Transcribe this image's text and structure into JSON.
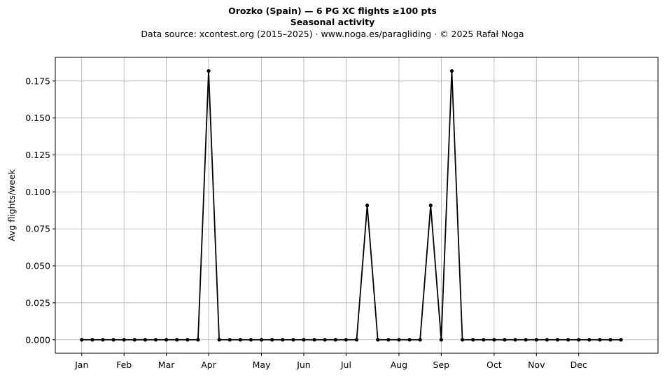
{
  "chart_data": {
    "type": "line",
    "title": "Orozko (Spain)  —  6 PG XC flights ≥100 pts",
    "subtitle": "Seasonal activity",
    "source_line": "Data source: xcontest.org (2015–2025)  ·  www.noga.es/paragliding  ·  © 2025 Rafał Noga",
    "xlabel": "",
    "ylabel": "Avg flights/week",
    "x_range": [
      -2.5,
      54.5
    ],
    "ylim": [
      -0.0091,
      0.191
    ],
    "y_ticks": [
      0.0,
      0.025,
      0.05,
      0.075,
      0.1,
      0.125,
      0.15,
      0.175
    ],
    "y_tick_labels": [
      "0.000",
      "0.025",
      "0.050",
      "0.075",
      "0.100",
      "0.125",
      "0.150",
      "0.175"
    ],
    "x_ticks": [
      0,
      4,
      8,
      12,
      17,
      21,
      25,
      30,
      34,
      39,
      43,
      47
    ],
    "x_tick_labels": [
      "Jan",
      "Feb",
      "Mar",
      "Apr",
      "May",
      "Jun",
      "Jul",
      "Aug",
      "Sep",
      "Oct",
      "Nov",
      "Dec"
    ],
    "grid": true,
    "line_color": "#000000",
    "series": [
      {
        "x": [
          0,
          1,
          2,
          3,
          4,
          5,
          6,
          7,
          8,
          9,
          10,
          11,
          12,
          13,
          14,
          15,
          16,
          17,
          18,
          19,
          20,
          21,
          22,
          23,
          24,
          25,
          26,
          27,
          28,
          29,
          30,
          31,
          32,
          33,
          34,
          35,
          36,
          37,
          38,
          39,
          40,
          41,
          42,
          43,
          44,
          45,
          46,
          47,
          48,
          49,
          50,
          51
        ],
        "values": [
          0,
          0,
          0,
          0,
          0,
          0,
          0,
          0,
          0,
          0,
          0,
          0,
          0.1818,
          0,
          0,
          0,
          0,
          0,
          0,
          0,
          0,
          0,
          0,
          0,
          0,
          0,
          0,
          0.0909,
          0,
          0,
          0,
          0,
          0,
          0.0909,
          0,
          0.1818,
          0,
          0,
          0,
          0,
          0,
          0,
          0,
          0,
          0,
          0,
          0,
          0,
          0,
          0,
          0,
          0
        ]
      }
    ]
  }
}
